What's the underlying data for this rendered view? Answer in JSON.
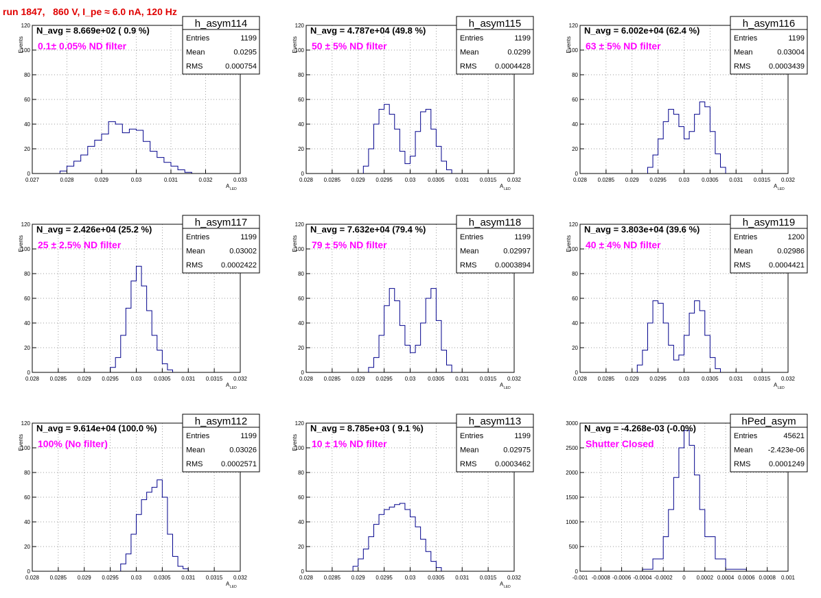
{
  "title": "run 1847,   860 V, I_pe ≈ 6.0 nA, 120 Hz",
  "chart_data": [
    {
      "type": "histogram",
      "name": "h_asym114",
      "stats": [
        [
          "Entries",
          "1199"
        ],
        [
          "Mean",
          "0.0295"
        ],
        [
          "RMS",
          "0.000754"
        ]
      ],
      "navg": "N_avg = 8.669e+02 ( 0.9 %)",
      "filter": "0.1± 0.05% ND filter",
      "ylabel": "Events",
      "xlabel": "A",
      "xlabel_sub": "LED",
      "xlim": [
        0.027,
        0.033
      ],
      "ylim": [
        0,
        120
      ],
      "xticks": [
        0.027,
        0.028,
        0.029,
        0.03,
        0.031,
        0.032,
        0.033
      ],
      "xtick_labels": [
        "0.027",
        "0.028",
        "0.029",
        "0.03",
        "0.031",
        "0.032",
        "0.033"
      ],
      "yticks": [
        0,
        20,
        40,
        60,
        80,
        100,
        120
      ],
      "ytick_labels": [
        "0",
        "20",
        "40",
        "60",
        "80",
        "100",
        "120"
      ],
      "x": [
        0.0272,
        0.0278,
        0.028,
        0.0282,
        0.0284,
        0.0286,
        0.0288,
        0.029,
        0.0292,
        0.0294,
        0.0296,
        0.0298,
        0.03,
        0.0302,
        0.0304,
        0.0306,
        0.0308,
        0.031,
        0.0312,
        0.0314,
        0.0316
      ],
      "y": [
        0,
        2,
        6,
        10,
        15,
        22,
        27,
        32,
        42,
        40,
        33,
        36,
        35,
        26,
        18,
        13,
        9,
        6,
        3,
        1,
        0
      ]
    },
    {
      "type": "histogram",
      "name": "h_asym115",
      "stats": [
        [
          "Entries",
          "1199"
        ],
        [
          "Mean",
          "0.0299"
        ],
        [
          "RMS",
          "0.0004428"
        ]
      ],
      "navg": "N_avg = 4.787e+04 (49.8 %)",
      "filter": "50 ± 5% ND filter",
      "ylabel": "Events",
      "xlabel": "A",
      "xlabel_sub": "LED",
      "xlim": [
        0.028,
        0.032
      ],
      "ylim": [
        0,
        120
      ],
      "xticks": [
        0.028,
        0.0285,
        0.029,
        0.0295,
        0.03,
        0.0305,
        0.031,
        0.0315,
        0.032
      ],
      "xtick_labels": [
        "0.028",
        "0.0285",
        "0.029",
        "0.0295",
        "0.03",
        "0.0305",
        "0.031",
        "0.0315",
        "0.032"
      ],
      "yticks": [
        0,
        20,
        40,
        60,
        80,
        100,
        120
      ],
      "ytick_labels": [
        "0",
        "20",
        "40",
        "60",
        "80",
        "100",
        "120"
      ],
      "x": [
        0.0289,
        0.0291,
        0.0292,
        0.0293,
        0.0294,
        0.0295,
        0.0296,
        0.0297,
        0.0298,
        0.0299,
        0.03,
        0.0301,
        0.0302,
        0.0303,
        0.0304,
        0.0305,
        0.0306,
        0.0307,
        0.0308
      ],
      "y": [
        0,
        6,
        20,
        40,
        52,
        56,
        48,
        36,
        18,
        8,
        14,
        34,
        50,
        52,
        36,
        22,
        10,
        3,
        0
      ]
    },
    {
      "type": "histogram",
      "name": "h_asym116",
      "stats": [
        [
          "Entries",
          "1199"
        ],
        [
          "Mean",
          "0.03004"
        ],
        [
          "RMS",
          "0.0003439"
        ]
      ],
      "navg": "N_avg = 6.002e+04 (62.4 %)",
      "filter": "63 ± 5% ND filter",
      "ylabel": "Events",
      "xlabel": "A",
      "xlabel_sub": "LED",
      "xlim": [
        0.028,
        0.032
      ],
      "ylim": [
        0,
        120
      ],
      "xticks": [
        0.028,
        0.0285,
        0.029,
        0.0295,
        0.03,
        0.0305,
        0.031,
        0.0315,
        0.032
      ],
      "xtick_labels": [
        "0.028",
        "0.0285",
        "0.029",
        "0.0295",
        "0.03",
        "0.0305",
        "0.031",
        "0.0315",
        "0.032"
      ],
      "yticks": [
        0,
        20,
        40,
        60,
        80,
        100,
        120
      ],
      "ytick_labels": [
        "0",
        "20",
        "40",
        "60",
        "80",
        "100",
        "120"
      ],
      "x": [
        0.0292,
        0.0293,
        0.0294,
        0.0295,
        0.0296,
        0.0297,
        0.0298,
        0.0299,
        0.03,
        0.0301,
        0.0302,
        0.0303,
        0.0304,
        0.0305,
        0.0306,
        0.0307,
        0.0308
      ],
      "y": [
        0,
        5,
        15,
        28,
        42,
        52,
        48,
        38,
        28,
        34,
        48,
        58,
        54,
        34,
        16,
        5,
        0
      ]
    },
    {
      "type": "histogram",
      "name": "h_asym117",
      "stats": [
        [
          "Entries",
          "1199"
        ],
        [
          "Mean",
          "0.03002"
        ],
        [
          "RMS",
          "0.0002422"
        ]
      ],
      "navg": "N_avg = 2.426e+04 (25.2 %)",
      "filter": "25 ± 2.5% ND filter",
      "ylabel": "Events",
      "xlabel": "A",
      "xlabel_sub": "LED",
      "xlim": [
        0.028,
        0.032
      ],
      "ylim": [
        0,
        120
      ],
      "xticks": [
        0.028,
        0.0285,
        0.029,
        0.0295,
        0.03,
        0.0305,
        0.031,
        0.0315,
        0.032
      ],
      "xtick_labels": [
        "0.028",
        "0.0285",
        "0.029",
        "0.0295",
        "0.03",
        "0.0305",
        "0.031",
        "0.0315",
        "0.032"
      ],
      "yticks": [
        0,
        20,
        40,
        60,
        80,
        100,
        120
      ],
      "ytick_labels": [
        "0",
        "20",
        "40",
        "60",
        "80",
        "100",
        "120"
      ],
      "x": [
        0.0294,
        0.0295,
        0.0296,
        0.0297,
        0.0298,
        0.0299,
        0.03,
        0.0301,
        0.0302,
        0.0303,
        0.0304,
        0.0305,
        0.0306,
        0.0307
      ],
      "y": [
        0,
        4,
        12,
        30,
        52,
        74,
        86,
        70,
        50,
        30,
        18,
        7,
        2,
        0
      ]
    },
    {
      "type": "histogram",
      "name": "h_asym118",
      "stats": [
        [
          "Entries",
          "1199"
        ],
        [
          "Mean",
          "0.02997"
        ],
        [
          "RMS",
          "0.0003894"
        ]
      ],
      "navg": "N_avg = 7.632e+04 (79.4 %)",
      "filter": "79 ± 5% ND filter",
      "ylabel": "Events",
      "xlabel": "A",
      "xlabel_sub": "LED",
      "xlim": [
        0.028,
        0.032
      ],
      "ylim": [
        0,
        120
      ],
      "xticks": [
        0.028,
        0.0285,
        0.029,
        0.0295,
        0.03,
        0.0305,
        0.031,
        0.0315,
        0.032
      ],
      "xtick_labels": [
        "0.028",
        "0.0285",
        "0.029",
        "0.0295",
        "0.03",
        "0.0305",
        "0.031",
        "0.0315",
        "0.032"
      ],
      "yticks": [
        0,
        20,
        40,
        60,
        80,
        100,
        120
      ],
      "ytick_labels": [
        "0",
        "20",
        "40",
        "60",
        "80",
        "100",
        "120"
      ],
      "x": [
        0.029,
        0.0292,
        0.0293,
        0.0294,
        0.0295,
        0.0296,
        0.0297,
        0.0298,
        0.0299,
        0.03,
        0.0301,
        0.0302,
        0.0303,
        0.0304,
        0.0305,
        0.0306,
        0.0307,
        0.0308
      ],
      "y": [
        0,
        4,
        12,
        30,
        54,
        68,
        58,
        38,
        22,
        16,
        22,
        40,
        60,
        68,
        42,
        18,
        6,
        0
      ]
    },
    {
      "type": "histogram",
      "name": "h_asym119",
      "stats": [
        [
          "Entries",
          "1200"
        ],
        [
          "Mean",
          "0.02986"
        ],
        [
          "RMS",
          "0.0004421"
        ]
      ],
      "navg": "N_avg = 3.803e+04 (39.6 %)",
      "filter": "40 ± 4% ND filter",
      "ylabel": "Events",
      "xlabel": "A",
      "xlabel_sub": "LED",
      "xlim": [
        0.028,
        0.032
      ],
      "ylim": [
        0,
        120
      ],
      "xticks": [
        0.028,
        0.0285,
        0.029,
        0.0295,
        0.03,
        0.0305,
        0.031,
        0.0315,
        0.032
      ],
      "xtick_labels": [
        "0.028",
        "0.0285",
        "0.029",
        "0.0295",
        "0.03",
        "0.0305",
        "0.031",
        "0.0315",
        "0.032"
      ],
      "yticks": [
        0,
        20,
        40,
        60,
        80,
        100,
        120
      ],
      "ytick_labels": [
        "0",
        "20",
        "40",
        "60",
        "80",
        "100",
        "120"
      ],
      "x": [
        0.0289,
        0.0291,
        0.0292,
        0.0293,
        0.0294,
        0.0295,
        0.0296,
        0.0297,
        0.0298,
        0.0299,
        0.03,
        0.0301,
        0.0302,
        0.0303,
        0.0304,
        0.0305,
        0.0306,
        0.0307
      ],
      "y": [
        0,
        6,
        18,
        40,
        58,
        56,
        40,
        22,
        10,
        14,
        30,
        48,
        58,
        50,
        30,
        12,
        3,
        0
      ]
    },
    {
      "type": "histogram",
      "name": "h_asym112",
      "stats": [
        [
          "Entries",
          "1199"
        ],
        [
          "Mean",
          "0.03026"
        ],
        [
          "RMS",
          "0.0002571"
        ]
      ],
      "navg": "N_avg = 9.614e+04 (100.0 %)",
      "filter": "100% (No filter)",
      "ylabel": "Events",
      "xlabel": "A",
      "xlabel_sub": "LED",
      "xlim": [
        0.028,
        0.032
      ],
      "ylim": [
        0,
        120
      ],
      "xticks": [
        0.028,
        0.0285,
        0.029,
        0.0295,
        0.03,
        0.0305,
        0.031,
        0.0315,
        0.032
      ],
      "xtick_labels": [
        "0.028",
        "0.0285",
        "0.029",
        "0.0295",
        "0.03",
        "0.0305",
        "0.031",
        "0.0315",
        "0.032"
      ],
      "yticks": [
        0,
        20,
        40,
        60,
        80,
        100,
        120
      ],
      "ytick_labels": [
        "0",
        "20",
        "40",
        "60",
        "80",
        "100",
        "120"
      ],
      "x": [
        0.0295,
        0.0297,
        0.0298,
        0.0299,
        0.03,
        0.0301,
        0.0302,
        0.0303,
        0.0304,
        0.0305,
        0.0306,
        0.0307,
        0.0308,
        0.0309,
        0.031
      ],
      "y": [
        0,
        6,
        14,
        30,
        46,
        58,
        64,
        68,
        74,
        60,
        30,
        12,
        4,
        2,
        0
      ]
    },
    {
      "type": "histogram",
      "name": "h_asym113",
      "stats": [
        [
          "Entries",
          "1199"
        ],
        [
          "Mean",
          "0.02975"
        ],
        [
          "RMS",
          "0.0003462"
        ]
      ],
      "navg": "N_avg = 8.785e+03 ( 9.1 %)",
      "filter": "10 ± 1% ND filter",
      "ylabel": "Events",
      "xlabel": "A",
      "xlabel_sub": "LED",
      "xlim": [
        0.028,
        0.032
      ],
      "ylim": [
        0,
        120
      ],
      "xticks": [
        0.028,
        0.0285,
        0.029,
        0.0295,
        0.03,
        0.0305,
        0.031,
        0.0315,
        0.032
      ],
      "xtick_labels": [
        "0.028",
        "0.0285",
        "0.029",
        "0.0295",
        "0.03",
        "0.0305",
        "0.031",
        "0.0315",
        "0.032"
      ],
      "yticks": [
        0,
        20,
        40,
        60,
        80,
        100,
        120
      ],
      "ytick_labels": [
        "0",
        "20",
        "40",
        "60",
        "80",
        "100",
        "120"
      ],
      "x": [
        0.0287,
        0.0289,
        0.029,
        0.0291,
        0.0292,
        0.0293,
        0.0294,
        0.0295,
        0.0296,
        0.0297,
        0.0298,
        0.0299,
        0.03,
        0.0301,
        0.0302,
        0.0303,
        0.0304,
        0.0305,
        0.0306
      ],
      "y": [
        0,
        4,
        10,
        18,
        28,
        38,
        46,
        50,
        52,
        54,
        55,
        50,
        44,
        36,
        26,
        16,
        8,
        3,
        0
      ]
    },
    {
      "type": "histogram",
      "name": "hPed_asym",
      "stats": [
        [
          "Entries",
          "45621"
        ],
        [
          "Mean",
          "-2.423e-06"
        ],
        [
          "RMS",
          "0.0001249"
        ]
      ],
      "navg": "N_avg = -4.268e-03 (-0.0%)",
      "filter": "Shutter Closed",
      "xlabel": "",
      "xlabel_sub": "",
      "ylabel": "",
      "xlim": [
        -0.001,
        0.001
      ],
      "ylim": [
        0,
        3000
      ],
      "xticks": [
        -0.001,
        -0.0008,
        -0.0006,
        -0.0004,
        -0.0002,
        0,
        0.0002,
        0.0004,
        0.0006,
        0.0008,
        0.001
      ],
      "xtick_labels": [
        "-0.001",
        "-0.0008",
        "-0.0006",
        "-0.0004",
        "-0.0002",
        "0",
        "0.0002",
        "0.0004",
        "0.0006",
        "0.0008",
        "0.001"
      ],
      "yticks": [
        0,
        500,
        1000,
        1500,
        2000,
        2500,
        3000
      ],
      "ytick_labels": [
        "0",
        "500",
        "1000",
        "1500",
        "2000",
        "2500",
        "3000"
      ],
      "x": [
        -0.0006,
        -0.0004,
        -0.0003,
        -0.0002,
        -0.00015,
        -0.0001,
        -5e-05,
        0,
        5e-05,
        0.0001,
        0.00015,
        0.0002,
        0.0003,
        0.0004,
        0.0006
      ],
      "y": [
        0,
        40,
        250,
        700,
        1250,
        1900,
        2500,
        2850,
        2550,
        1950,
        1250,
        700,
        250,
        40,
        0
      ]
    }
  ]
}
